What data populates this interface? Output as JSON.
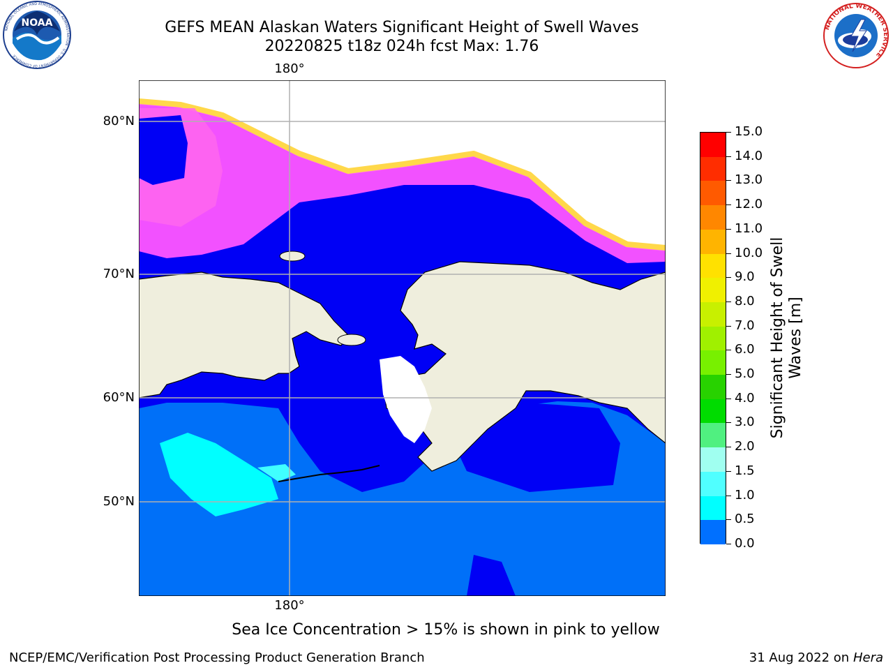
{
  "header": {
    "title_line1": "GEFS MEAN Alaskan Waters Significant Height of Swell Waves",
    "title_line2": "20220825 t18z 024h fcst   Max: 1.76"
  },
  "logos": {
    "noaa": {
      "text": "NOAA",
      "ring_text": "NATIONAL OCEANIC AND ATMOSPHERIC ADMINISTRATION · U.S. DEPARTMENT OF COMMERCE"
    },
    "nws": {
      "ring_text": "NATIONAL WEATHER SERVICE"
    }
  },
  "map": {
    "latitude_labels": [
      "80°N",
      "70°N",
      "60°N",
      "50°N"
    ],
    "longitude_label_top": "180°",
    "longitude_label_bottom": "180°",
    "colors": {
      "ocean_low": "#0000f5",
      "ocean_mid": "#0070f8",
      "ocean_high": "#00ffff",
      "land": "#efeedd",
      "ice_pink": "#ff55ff",
      "ice_yellow": "#ffdd33",
      "gridline": "#b0b0b0"
    }
  },
  "colorbar": {
    "label": "Significant Height of Swell Waves [m]",
    "ticks": [
      "15.0",
      "14.0",
      "13.0",
      "12.0",
      "11.0",
      "10.0",
      "9.0",
      "8.0",
      "7.0",
      "6.0",
      "5.0",
      "4.0",
      "3.0",
      "2.0",
      "1.5",
      "1.0",
      "0.5",
      "0.0"
    ],
    "colors_top_to_bottom": [
      "#ff0000",
      "#ff2d00",
      "#ff5a00",
      "#ff8700",
      "#ffb400",
      "#ffe100",
      "#f0f000",
      "#c8f000",
      "#a0f000",
      "#78f000",
      "#28d200",
      "#00dc00",
      "#50f080",
      "#a0fff0",
      "#50ffff",
      "#00ffff",
      "#0070ff",
      "#0000ff"
    ]
  },
  "notes": {
    "sea_ice": "Sea Ice Concentration > 15% is shown in pink to yellow"
  },
  "footer": {
    "left": "NCEP/EMC/Verification Post Processing Product Generation Branch",
    "right_prefix": "31 Aug 2022 on",
    "right_italic": "Hera"
  }
}
